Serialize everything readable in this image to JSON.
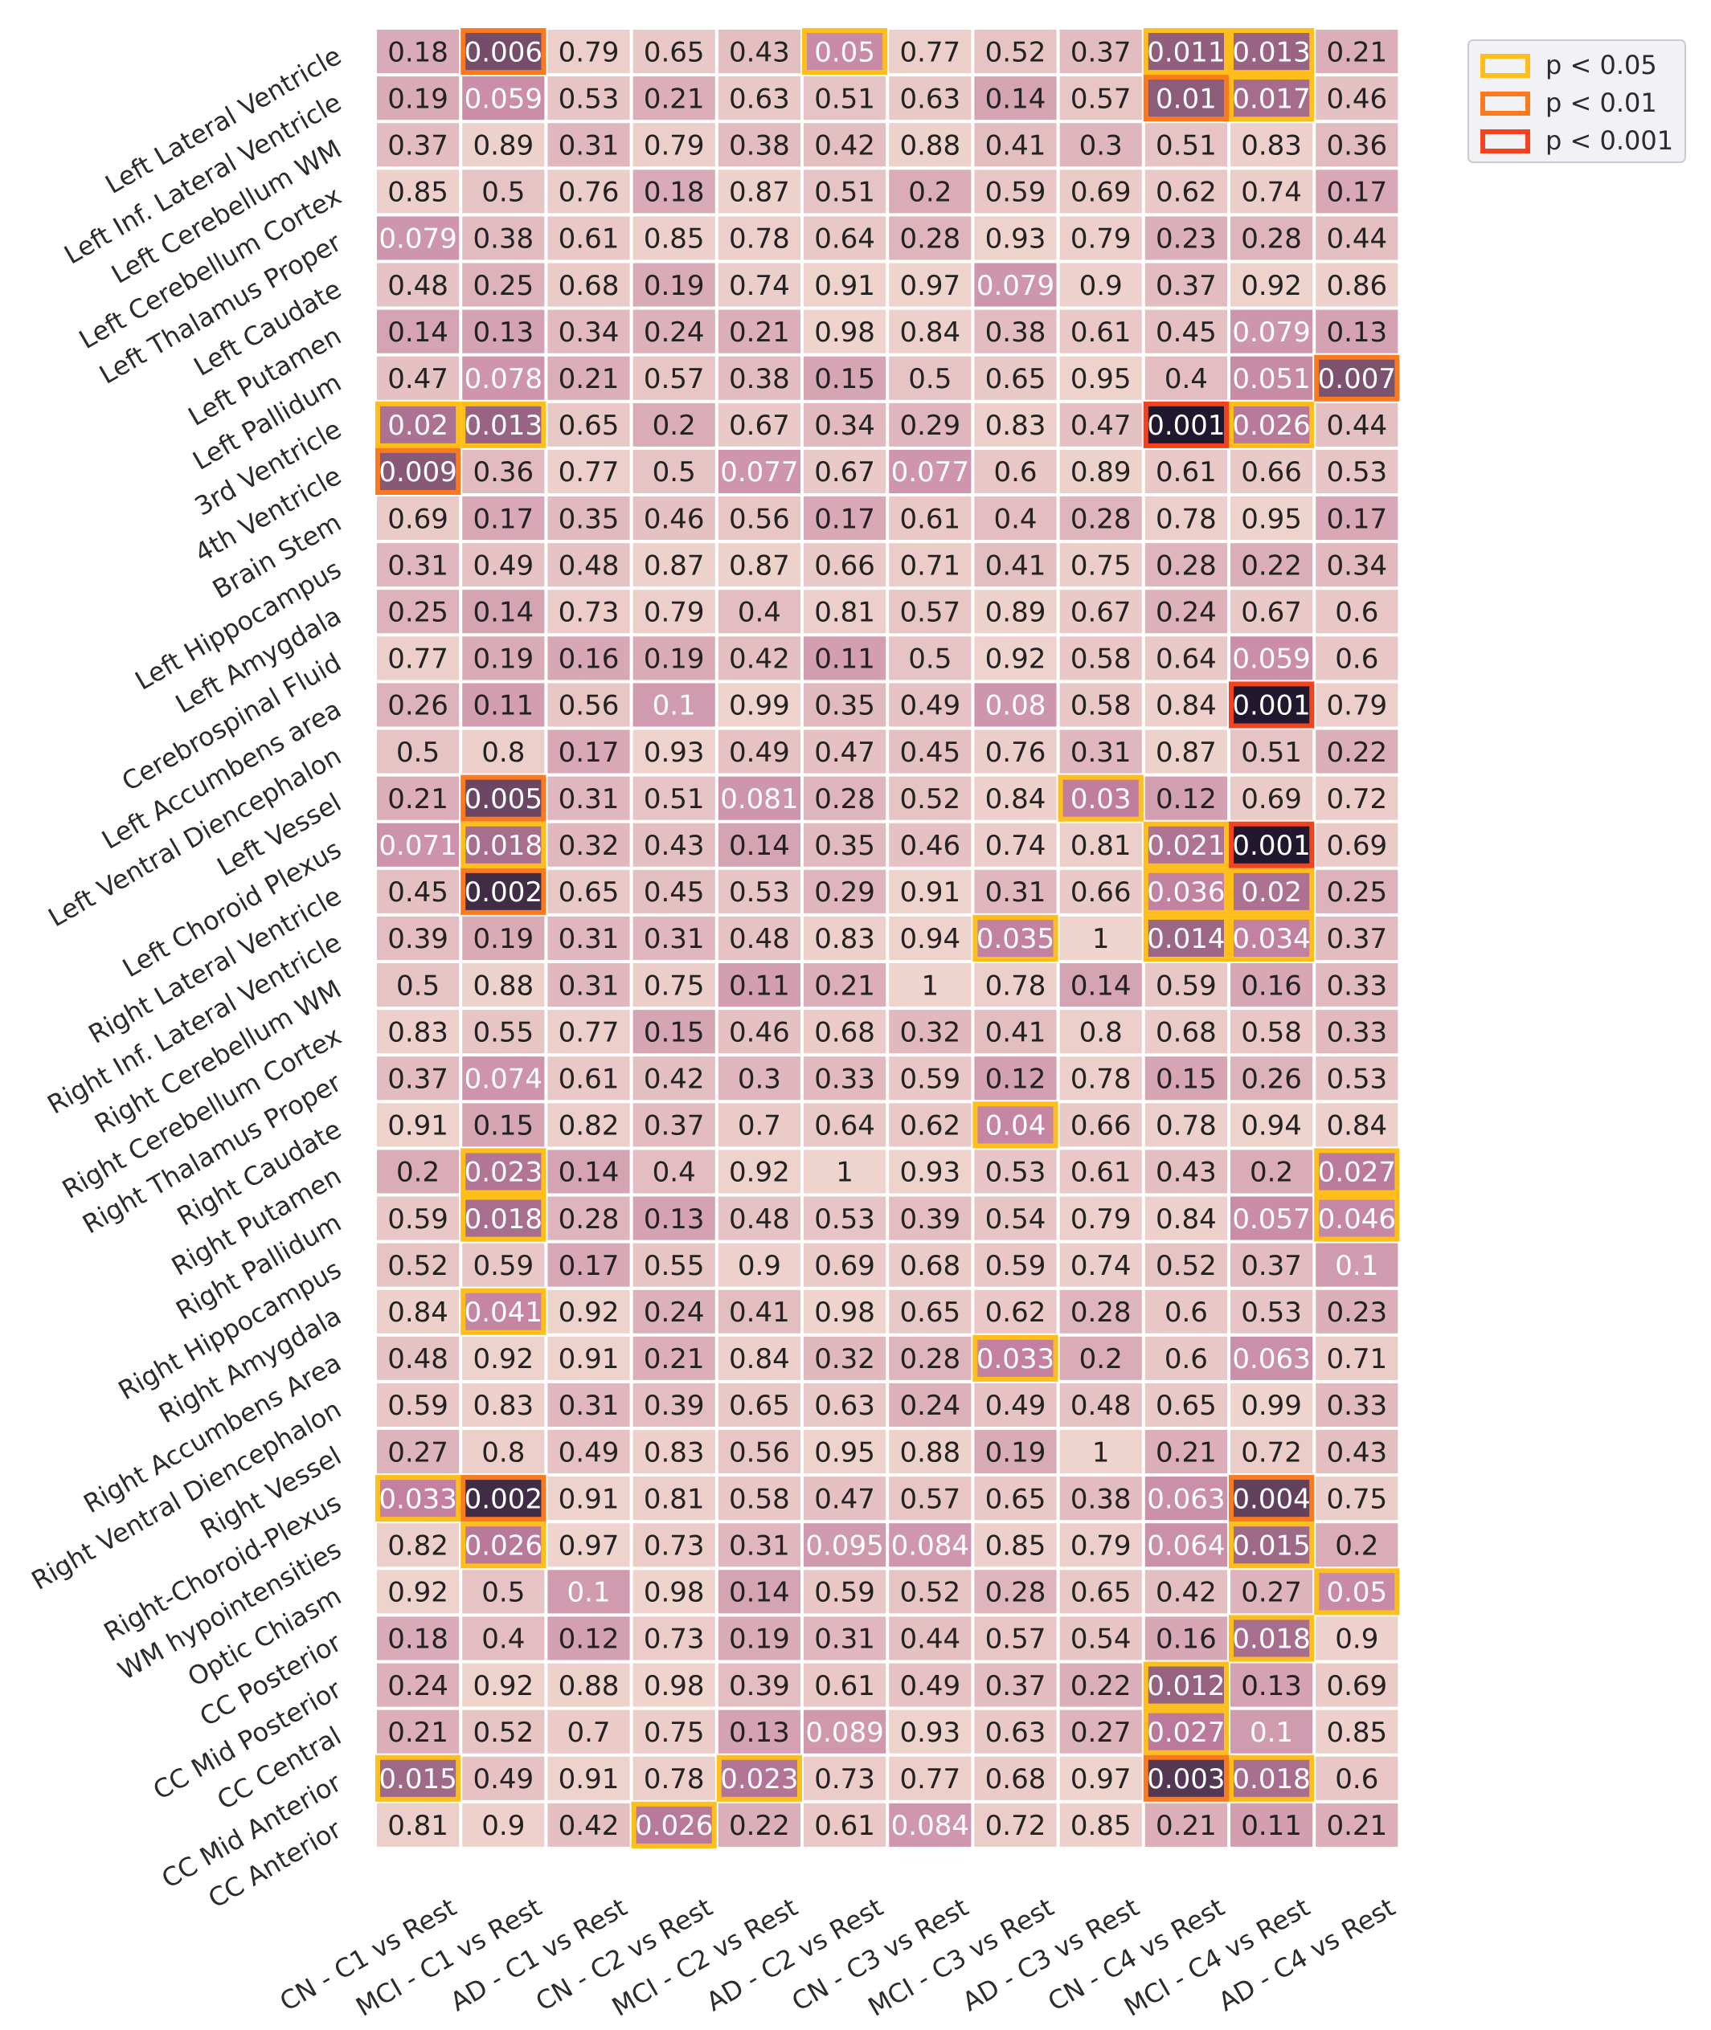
{
  "chart_data": {
    "type": "heatmap",
    "title": "",
    "xlabel": "",
    "ylabel": "",
    "color_scale": {
      "low": "#efd4cd",
      "mid": "#c27fa0",
      "high": "#21172f",
      "text_dark": "#222222",
      "text_light": "#ffffff"
    },
    "columns": [
      "CN - C1 vs Rest",
      "MCI - C1 vs Rest",
      "AD - C1 vs Rest",
      "CN - C2 vs Rest",
      "MCI - C2 vs Rest",
      "AD - C2 vs Rest",
      "CN - C3 vs Rest",
      "MCI - C3 vs Rest",
      "AD - C3 vs Rest",
      "CN - C4 vs Rest",
      "MCI - C4 vs Rest",
      "AD - C4 vs Rest"
    ],
    "rows": [
      "Left Lateral Ventricle",
      "Left Inf. Lateral Ventricle",
      "Left Cerebellum WM",
      "Left Cerebellum Cortex",
      "Left Thalamus Proper",
      "Left Caudate",
      "Left Putamen",
      "Left Pallidum",
      "3rd Ventricle",
      "4th Ventricle",
      "Brain Stem",
      "Left Hippocampus",
      "Left Amygdala",
      "Cerebrospinal Fluid",
      "Left Accumbens area",
      "Left Ventral Diencephalon",
      "Left Vessel",
      "Left Choroid Plexus",
      "Right Lateral Ventricle",
      "Right Inf. Lateral Ventricle",
      "Right Cerebellum WM",
      "Right Cerebellum Cortex",
      "Right Thalamus Proper",
      "Right Caudate",
      "Right Putamen",
      "Right Pallidum",
      "Right Hippocampus",
      "Right Amygdala",
      "Right Accumbens Area",
      "Right Ventral Diencephalon",
      "Right Vessel",
      "Right-Choroid-Plexus",
      "WM hypointensities",
      "Optic Chiasm",
      "CC Posterior",
      "CC Mid Posterior",
      "CC Central",
      "CC Mid Anterior",
      "CC Anterior"
    ],
    "values": [
      [
        "0.18",
        "0.006",
        "0.79",
        "0.65",
        "0.43",
        "0.05",
        "0.77",
        "0.52",
        "0.37",
        "0.011",
        "0.013",
        "0.21"
      ],
      [
        "0.19",
        "0.059",
        "0.53",
        "0.21",
        "0.63",
        "0.51",
        "0.63",
        "0.14",
        "0.57",
        "0.01",
        "0.017",
        "0.46"
      ],
      [
        "0.37",
        "0.89",
        "0.31",
        "0.79",
        "0.38",
        "0.42",
        "0.88",
        "0.41",
        "0.3",
        "0.51",
        "0.83",
        "0.36"
      ],
      [
        "0.85",
        "0.5",
        "0.76",
        "0.18",
        "0.87",
        "0.51",
        "0.2",
        "0.59",
        "0.69",
        "0.62",
        "0.74",
        "0.17"
      ],
      [
        "0.079",
        "0.38",
        "0.61",
        "0.85",
        "0.78",
        "0.64",
        "0.28",
        "0.93",
        "0.79",
        "0.23",
        "0.28",
        "0.44"
      ],
      [
        "0.48",
        "0.25",
        "0.68",
        "0.19",
        "0.74",
        "0.91",
        "0.97",
        "0.079",
        "0.9",
        "0.37",
        "0.92",
        "0.86"
      ],
      [
        "0.14",
        "0.13",
        "0.34",
        "0.24",
        "0.21",
        "0.98",
        "0.84",
        "0.38",
        "0.61",
        "0.45",
        "0.079",
        "0.13"
      ],
      [
        "0.47",
        "0.078",
        "0.21",
        "0.57",
        "0.38",
        "0.15",
        "0.5",
        "0.65",
        "0.95",
        "0.4",
        "0.051",
        "0.007"
      ],
      [
        "0.02",
        "0.013",
        "0.65",
        "0.2",
        "0.67",
        "0.34",
        "0.29",
        "0.83",
        "0.47",
        "0.001",
        "0.026",
        "0.44"
      ],
      [
        "0.009",
        "0.36",
        "0.77",
        "0.5",
        "0.077",
        "0.67",
        "0.077",
        "0.6",
        "0.89",
        "0.61",
        "0.66",
        "0.53"
      ],
      [
        "0.69",
        "0.17",
        "0.35",
        "0.46",
        "0.56",
        "0.17",
        "0.61",
        "0.4",
        "0.28",
        "0.78",
        "0.95",
        "0.17"
      ],
      [
        "0.31",
        "0.49",
        "0.48",
        "0.87",
        "0.87",
        "0.66",
        "0.71",
        "0.41",
        "0.75",
        "0.28",
        "0.22",
        "0.34"
      ],
      [
        "0.25",
        "0.14",
        "0.73",
        "0.79",
        "0.4",
        "0.81",
        "0.57",
        "0.89",
        "0.67",
        "0.24",
        "0.67",
        "0.6"
      ],
      [
        "0.77",
        "0.19",
        "0.16",
        "0.19",
        "0.42",
        "0.11",
        "0.5",
        "0.92",
        "0.58",
        "0.64",
        "0.059",
        "0.6"
      ],
      [
        "0.26",
        "0.11",
        "0.56",
        "0.1",
        "0.99",
        "0.35",
        "0.49",
        "0.08",
        "0.58",
        "0.84",
        "0.001",
        "0.79"
      ],
      [
        "0.5",
        "0.8",
        "0.17",
        "0.93",
        "0.49",
        "0.47",
        "0.45",
        "0.76",
        "0.31",
        "0.87",
        "0.51",
        "0.22"
      ],
      [
        "0.21",
        "0.005",
        "0.31",
        "0.51",
        "0.081",
        "0.28",
        "0.52",
        "0.84",
        "0.03",
        "0.12",
        "0.69",
        "0.72"
      ],
      [
        "0.071",
        "0.018",
        "0.32",
        "0.43",
        "0.14",
        "0.35",
        "0.46",
        "0.74",
        "0.81",
        "0.021",
        "0.001",
        "0.69"
      ],
      [
        "0.45",
        "0.002",
        "0.65",
        "0.45",
        "0.53",
        "0.29",
        "0.91",
        "0.31",
        "0.66",
        "0.036",
        "0.02",
        "0.25"
      ],
      [
        "0.39",
        "0.19",
        "0.31",
        "0.31",
        "0.48",
        "0.83",
        "0.94",
        "0.035",
        "1",
        "0.014",
        "0.034",
        "0.37"
      ],
      [
        "0.5",
        "0.88",
        "0.31",
        "0.75",
        "0.11",
        "0.21",
        "1",
        "0.78",
        "0.14",
        "0.59",
        "0.16",
        "0.33"
      ],
      [
        "0.83",
        "0.55",
        "0.77",
        "0.15",
        "0.46",
        "0.68",
        "0.32",
        "0.41",
        "0.8",
        "0.68",
        "0.58",
        "0.33"
      ],
      [
        "0.37",
        "0.074",
        "0.61",
        "0.42",
        "0.3",
        "0.33",
        "0.59",
        "0.12",
        "0.78",
        "0.15",
        "0.26",
        "0.53"
      ],
      [
        "0.91",
        "0.15",
        "0.82",
        "0.37",
        "0.7",
        "0.64",
        "0.62",
        "0.04",
        "0.66",
        "0.78",
        "0.94",
        "0.84"
      ],
      [
        "0.2",
        "0.023",
        "0.14",
        "0.4",
        "0.92",
        "1",
        "0.93",
        "0.53",
        "0.61",
        "0.43",
        "0.2",
        "0.027"
      ],
      [
        "0.59",
        "0.018",
        "0.28",
        "0.13",
        "0.48",
        "0.53",
        "0.39",
        "0.54",
        "0.79",
        "0.84",
        "0.057",
        "0.046"
      ],
      [
        "0.52",
        "0.59",
        "0.17",
        "0.55",
        "0.9",
        "0.69",
        "0.68",
        "0.59",
        "0.74",
        "0.52",
        "0.37",
        "0.1"
      ],
      [
        "0.84",
        "0.041",
        "0.92",
        "0.24",
        "0.41",
        "0.98",
        "0.65",
        "0.62",
        "0.28",
        "0.6",
        "0.53",
        "0.23"
      ],
      [
        "0.48",
        "0.92",
        "0.91",
        "0.21",
        "0.84",
        "0.32",
        "0.28",
        "0.033",
        "0.2",
        "0.6",
        "0.063",
        "0.71"
      ],
      [
        "0.59",
        "0.83",
        "0.31",
        "0.39",
        "0.65",
        "0.63",
        "0.24",
        "0.49",
        "0.48",
        "0.65",
        "0.99",
        "0.33"
      ],
      [
        "0.27",
        "0.8",
        "0.49",
        "0.83",
        "0.56",
        "0.95",
        "0.88",
        "0.19",
        "1",
        "0.21",
        "0.72",
        "0.43"
      ],
      [
        "0.033",
        "0.002",
        "0.91",
        "0.81",
        "0.58",
        "0.47",
        "0.57",
        "0.65",
        "0.38",
        "0.063",
        "0.004",
        "0.75"
      ],
      [
        "0.82",
        "0.026",
        "0.97",
        "0.73",
        "0.31",
        "0.095",
        "0.084",
        "0.85",
        "0.79",
        "0.064",
        "0.015",
        "0.2"
      ],
      [
        "0.92",
        "0.5",
        "0.1",
        "0.98",
        "0.14",
        "0.59",
        "0.52",
        "0.28",
        "0.65",
        "0.42",
        "0.27",
        "0.05"
      ],
      [
        "0.18",
        "0.4",
        "0.12",
        "0.73",
        "0.19",
        "0.31",
        "0.44",
        "0.57",
        "0.54",
        "0.16",
        "0.018",
        "0.9"
      ],
      [
        "0.24",
        "0.92",
        "0.88",
        "0.98",
        "0.39",
        "0.61",
        "0.49",
        "0.37",
        "0.22",
        "0.012",
        "0.13",
        "0.69"
      ],
      [
        "0.21",
        "0.52",
        "0.7",
        "0.75",
        "0.13",
        "0.089",
        "0.93",
        "0.63",
        "0.27",
        "0.027",
        "0.1",
        "0.85"
      ],
      [
        "0.015",
        "0.49",
        "0.91",
        "0.78",
        "0.023",
        "0.73",
        "0.77",
        "0.68",
        "0.97",
        "0.003",
        "0.018",
        "0.6"
      ],
      [
        "0.81",
        "0.9",
        "0.42",
        "0.026",
        "0.22",
        "0.61",
        "0.084",
        "0.72",
        "0.85",
        "0.21",
        "0.11",
        "0.21"
      ]
    ],
    "significance_boxes": [
      {
        "row": 0,
        "col": 1,
        "level": "p < 0.01"
      },
      {
        "row": 0,
        "col": 5,
        "level": "p < 0.05"
      },
      {
        "row": 0,
        "col": 9,
        "level": "p < 0.05"
      },
      {
        "row": 0,
        "col": 10,
        "level": "p < 0.05"
      },
      {
        "row": 1,
        "col": 9,
        "level": "p < 0.01"
      },
      {
        "row": 1,
        "col": 10,
        "level": "p < 0.05"
      },
      {
        "row": 7,
        "col": 11,
        "level": "p < 0.01"
      },
      {
        "row": 8,
        "col": 0,
        "level": "p < 0.05"
      },
      {
        "row": 8,
        "col": 1,
        "level": "p < 0.05"
      },
      {
        "row": 8,
        "col": 9,
        "level": "p < 0.001"
      },
      {
        "row": 8,
        "col": 10,
        "level": "p < 0.05"
      },
      {
        "row": 9,
        "col": 0,
        "level": "p < 0.01"
      },
      {
        "row": 14,
        "col": 10,
        "level": "p < 0.001"
      },
      {
        "row": 16,
        "col": 1,
        "level": "p < 0.01"
      },
      {
        "row": 16,
        "col": 8,
        "level": "p < 0.05"
      },
      {
        "row": 17,
        "col": 1,
        "level": "p < 0.05"
      },
      {
        "row": 17,
        "col": 9,
        "level": "p < 0.05"
      },
      {
        "row": 17,
        "col": 10,
        "level": "p < 0.001"
      },
      {
        "row": 18,
        "col": 1,
        "level": "p < 0.01"
      },
      {
        "row": 18,
        "col": 9,
        "level": "p < 0.05"
      },
      {
        "row": 18,
        "col": 10,
        "level": "p < 0.05"
      },
      {
        "row": 19,
        "col": 7,
        "level": "p < 0.05"
      },
      {
        "row": 19,
        "col": 9,
        "level": "p < 0.05"
      },
      {
        "row": 19,
        "col": 10,
        "level": "p < 0.05"
      },
      {
        "row": 23,
        "col": 7,
        "level": "p < 0.05"
      },
      {
        "row": 24,
        "col": 1,
        "level": "p < 0.05"
      },
      {
        "row": 24,
        "col": 11,
        "level": "p < 0.05"
      },
      {
        "row": 25,
        "col": 1,
        "level": "p < 0.05"
      },
      {
        "row": 25,
        "col": 11,
        "level": "p < 0.05"
      },
      {
        "row": 27,
        "col": 1,
        "level": "p < 0.05"
      },
      {
        "row": 28,
        "col": 7,
        "level": "p < 0.05"
      },
      {
        "row": 31,
        "col": 0,
        "level": "p < 0.05"
      },
      {
        "row": 31,
        "col": 1,
        "level": "p < 0.01"
      },
      {
        "row": 31,
        "col": 10,
        "level": "p < 0.01"
      },
      {
        "row": 32,
        "col": 1,
        "level": "p < 0.05"
      },
      {
        "row": 32,
        "col": 10,
        "level": "p < 0.05"
      },
      {
        "row": 33,
        "col": 11,
        "level": "p < 0.05"
      },
      {
        "row": 34,
        "col": 10,
        "level": "p < 0.05"
      },
      {
        "row": 35,
        "col": 9,
        "level": "p < 0.05"
      },
      {
        "row": 36,
        "col": 9,
        "level": "p < 0.05"
      },
      {
        "row": 37,
        "col": 0,
        "level": "p < 0.05"
      },
      {
        "row": 37,
        "col": 4,
        "level": "p < 0.05"
      },
      {
        "row": 37,
        "col": 9,
        "level": "p < 0.01"
      },
      {
        "row": 37,
        "col": 10,
        "level": "p < 0.05"
      },
      {
        "row": 38,
        "col": 3,
        "level": "p < 0.05"
      }
    ],
    "legend": {
      "placement": "top-right",
      "entries": [
        {
          "label": "p < 0.05",
          "color": "#ffbe1a"
        },
        {
          "label": "p < 0.01",
          "color": "#fb7a20"
        },
        {
          "label": "p < 0.001",
          "color": "#f4421e"
        }
      ]
    }
  }
}
